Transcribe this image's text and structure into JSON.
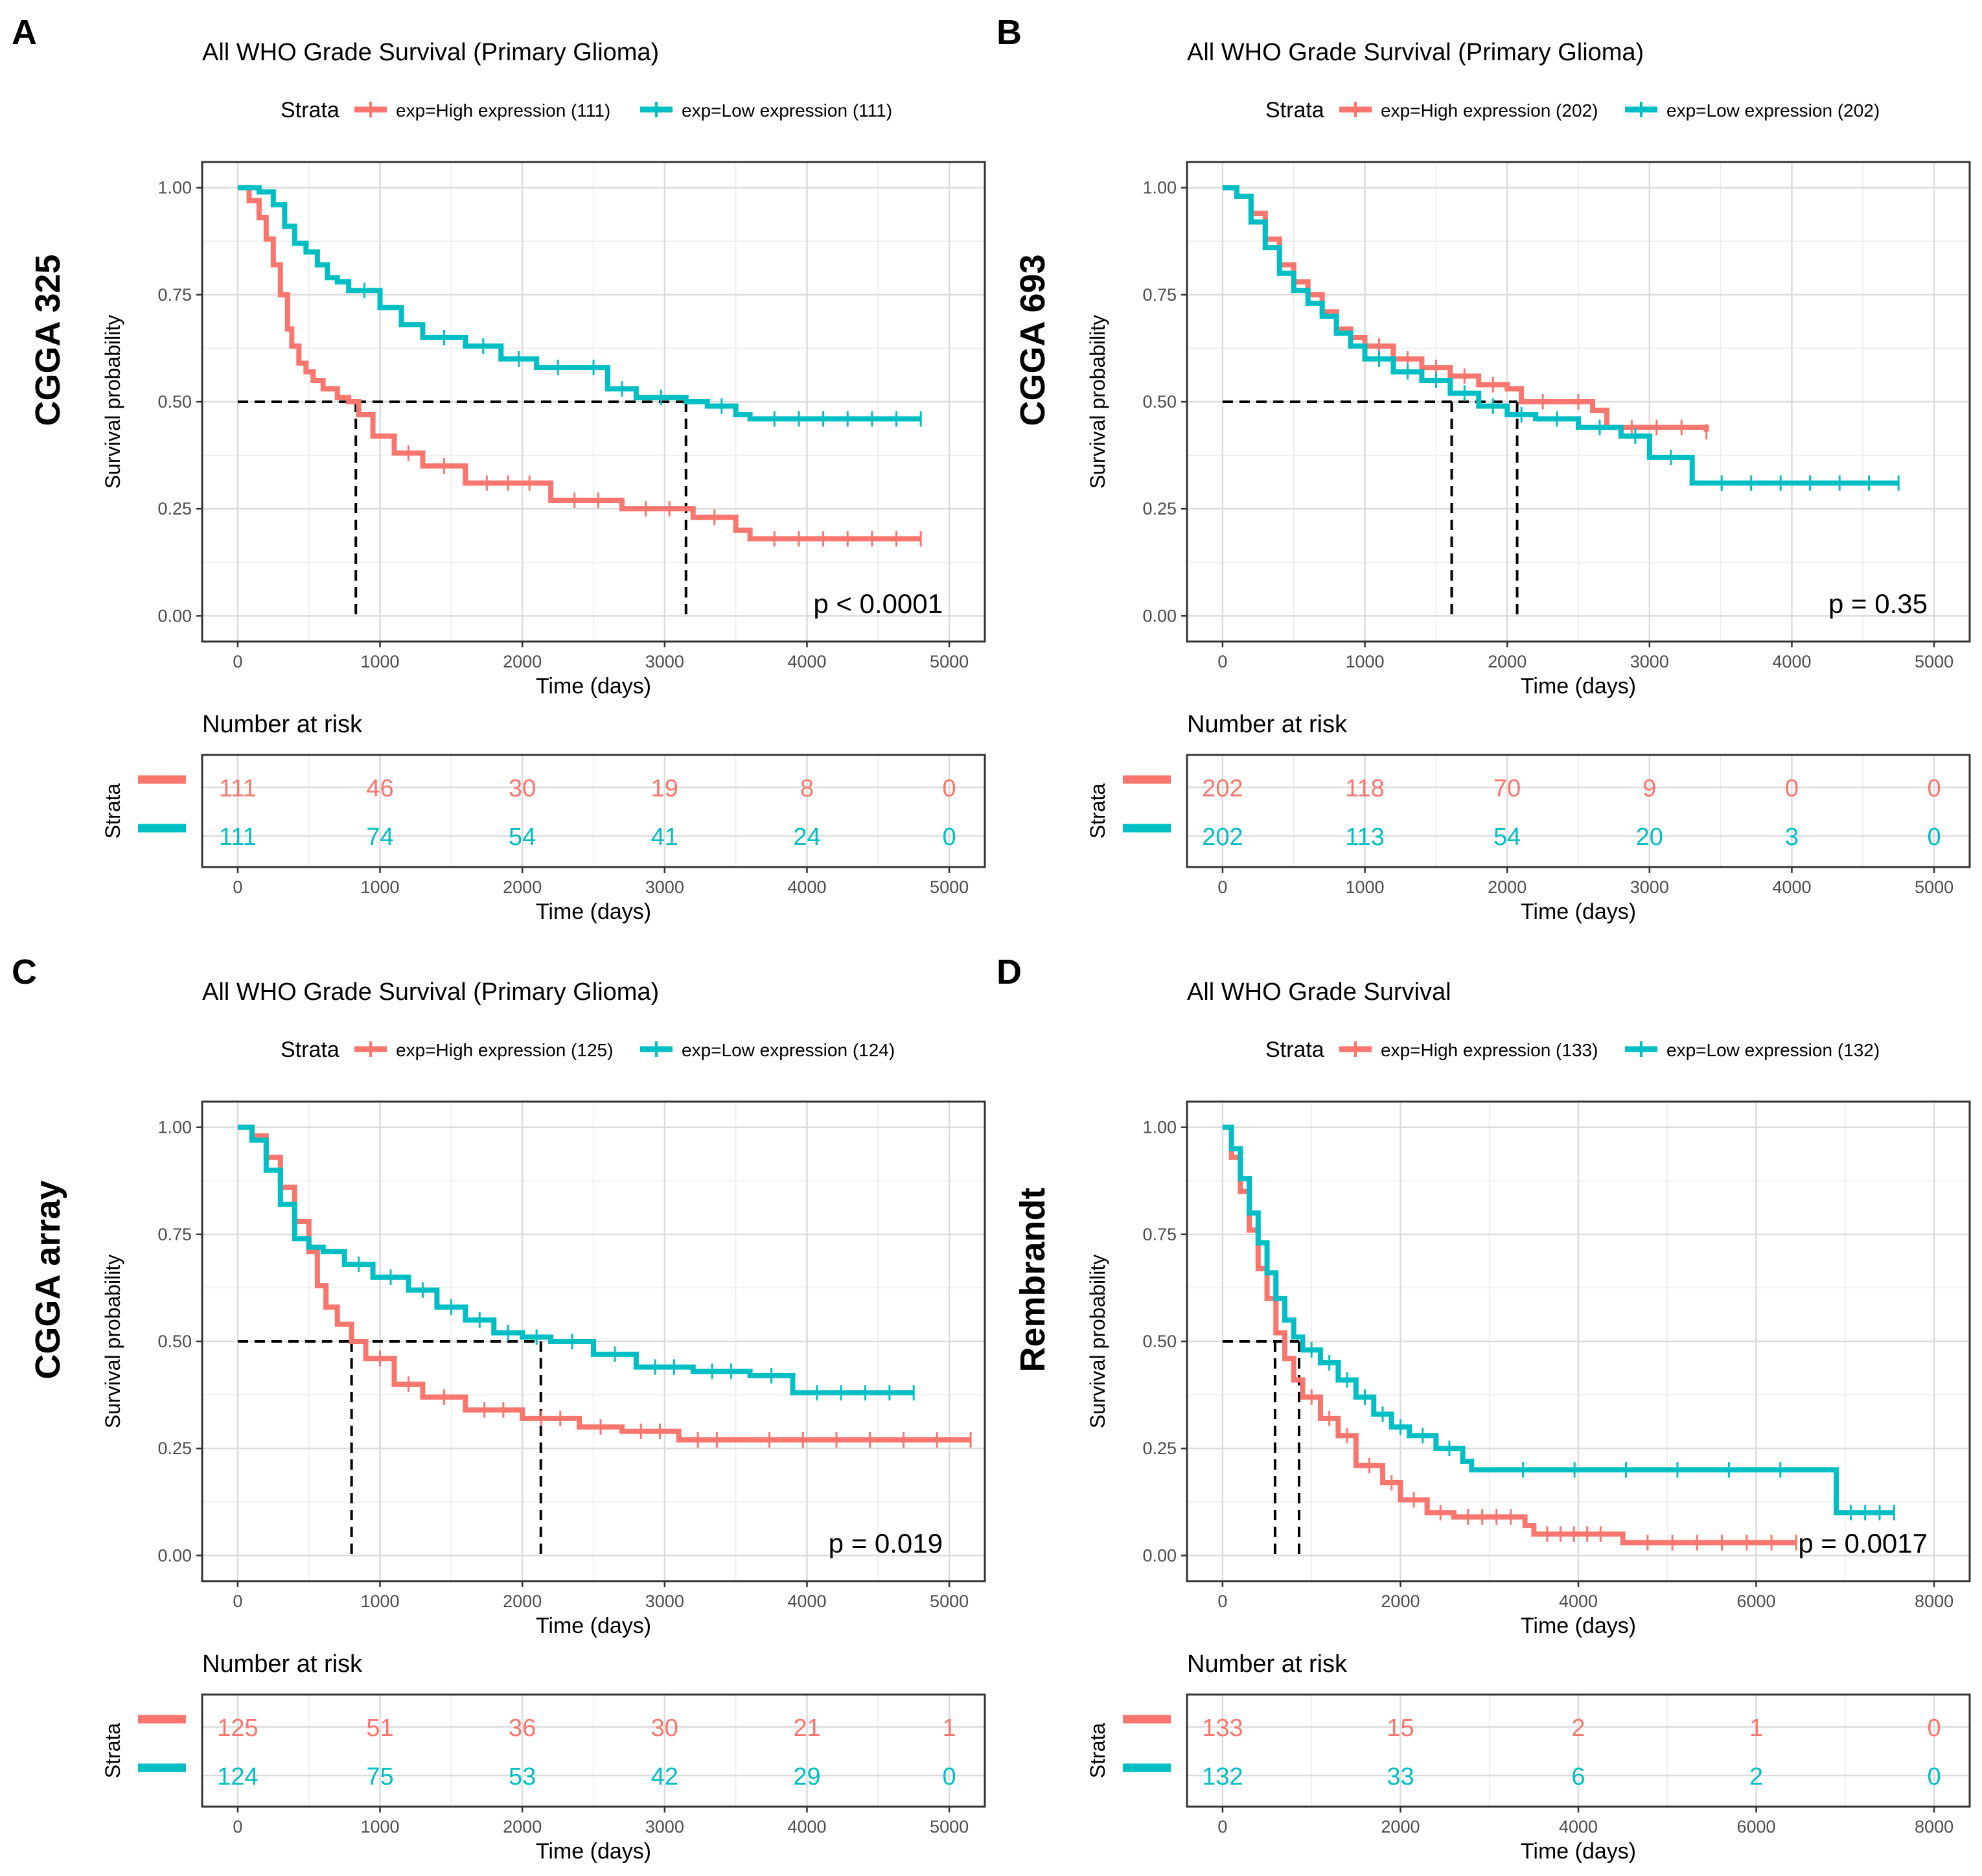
{
  "figure": {
    "kind": "Kaplan-Meier survival curves, four panels"
  },
  "chart_data": [
    {
      "type": "line",
      "panel_letter": "A",
      "dataset_label": "CGGA 325",
      "title": "All WHO Grade Survival (Primary Glioma)",
      "legend_title": "Strata",
      "xlabel": "Time (days)",
      "ylabel": "Survival probability",
      "xlim": [
        -250,
        5250
      ],
      "ylim": [
        -0.06,
        1.06
      ],
      "xticks": [
        0,
        1000,
        2000,
        3000,
        4000,
        5000
      ],
      "yticks": [
        0,
        0.25,
        0.5,
        0.75,
        1.0
      ],
      "ytick_labels": [
        "0.00",
        "0.25",
        "0.50",
        "0.75",
        "1.00"
      ],
      "pvalue": "p < 0.0001",
      "median_survival": [
        830,
        3150
      ],
      "series": [
        {
          "name": "exp=High expression (111)",
          "color": "#F8766D",
          "x": [
            0,
            80,
            150,
            200,
            250,
            300,
            350,
            380,
            430,
            480,
            530,
            600,
            700,
            780,
            850,
            950,
            1100,
            1300,
            1600,
            2200,
            2700,
            3200,
            3500,
            3600,
            4800
          ],
          "y": [
            1.0,
            0.97,
            0.93,
            0.88,
            0.82,
            0.75,
            0.67,
            0.63,
            0.59,
            0.57,
            0.55,
            0.53,
            0.51,
            0.5,
            0.47,
            0.42,
            0.38,
            0.35,
            0.31,
            0.27,
            0.25,
            0.23,
            0.2,
            0.18,
            0.18
          ]
        },
        {
          "name": "exp=Low expression (111)",
          "color": "#00BFC4",
          "x": [
            0,
            150,
            250,
            330,
            400,
            480,
            560,
            630,
            700,
            780,
            1000,
            1150,
            1300,
            1600,
            1850,
            2100,
            2400,
            2600,
            2800,
            3150,
            3300,
            3500,
            3600,
            4800
          ],
          "y": [
            1.0,
            0.99,
            0.96,
            0.91,
            0.87,
            0.85,
            0.82,
            0.79,
            0.78,
            0.76,
            0.72,
            0.68,
            0.65,
            0.63,
            0.6,
            0.58,
            0.58,
            0.53,
            0.51,
            0.5,
            0.49,
            0.47,
            0.46,
            0.46
          ]
        }
      ],
      "risk_table": {
        "title": "Number at risk",
        "y_title": "Strata",
        "xticks": [
          0,
          1000,
          2000,
          3000,
          4000,
          5000
        ],
        "rows": [
          {
            "values": [
              "111",
              "46",
              "30",
              "19",
              "8",
              "0"
            ],
            "color": "#F8766D"
          },
          {
            "values": [
              "111",
              "74",
              "54",
              "41",
              "24",
              "0"
            ],
            "color": "#00BFC4"
          }
        ]
      }
    },
    {
      "type": "line",
      "panel_letter": "B",
      "dataset_label": "CGGA 693",
      "title": "All WHO Grade Survival (Primary Glioma)",
      "legend_title": "Strata",
      "xlabel": "Time (days)",
      "ylabel": "Survival probability",
      "xlim": [
        -250,
        5250
      ],
      "ylim": [
        -0.06,
        1.06
      ],
      "xticks": [
        0,
        1000,
        2000,
        3000,
        4000,
        5000
      ],
      "yticks": [
        0,
        0.25,
        0.5,
        0.75,
        1.0
      ],
      "ytick_labels": [
        "0.00",
        "0.25",
        "0.50",
        "0.75",
        "1.00"
      ],
      "pvalue": "p = 0.35",
      "median_survival": [
        1610,
        2070
      ],
      "series": [
        {
          "name": "exp=High expression (202)",
          "color": "#F8766D",
          "x": [
            0,
            100,
            200,
            300,
            400,
            500,
            600,
            700,
            800,
            900,
            1000,
            1200,
            1400,
            1600,
            1800,
            2000,
            2100,
            2400,
            2600,
            2700,
            3400
          ],
          "y": [
            1.0,
            0.98,
            0.94,
            0.88,
            0.82,
            0.78,
            0.75,
            0.71,
            0.67,
            0.65,
            0.63,
            0.6,
            0.58,
            0.56,
            0.54,
            0.53,
            0.5,
            0.5,
            0.48,
            0.44,
            0.43
          ]
        },
        {
          "name": "exp=Low expression (202)",
          "color": "#00BFC4",
          "x": [
            0,
            100,
            200,
            300,
            400,
            500,
            600,
            700,
            800,
            900,
            1000,
            1200,
            1400,
            1600,
            1800,
            2000,
            2200,
            2500,
            2800,
            3000,
            3300,
            4750
          ],
          "y": [
            1.0,
            0.98,
            0.92,
            0.86,
            0.8,
            0.76,
            0.73,
            0.7,
            0.66,
            0.63,
            0.6,
            0.57,
            0.55,
            0.52,
            0.49,
            0.47,
            0.46,
            0.44,
            0.42,
            0.37,
            0.31,
            0.31
          ]
        }
      ],
      "risk_table": {
        "title": "Number at risk",
        "y_title": "Strata",
        "xticks": [
          0,
          1000,
          2000,
          3000,
          4000,
          5000
        ],
        "rows": [
          {
            "values": [
              "202",
              "118",
              "70",
              "9",
              "0",
              "0"
            ],
            "color": "#F8766D"
          },
          {
            "values": [
              "202",
              "113",
              "54",
              "20",
              "3",
              "0"
            ],
            "color": "#00BFC4"
          }
        ]
      }
    },
    {
      "type": "line",
      "panel_letter": "C",
      "dataset_label": "CGGA array",
      "title": "All WHO Grade Survival (Primary Glioma)",
      "legend_title": "Strata",
      "xlabel": "Time (days)",
      "ylabel": "Survival probability",
      "xlim": [
        -250,
        5250
      ],
      "ylim": [
        -0.06,
        1.06
      ],
      "xticks": [
        0,
        1000,
        2000,
        3000,
        4000,
        5000
      ],
      "yticks": [
        0,
        0.25,
        0.5,
        0.75,
        1.0
      ],
      "ytick_labels": [
        "0.00",
        "0.25",
        "0.50",
        "0.75",
        "1.00"
      ],
      "pvalue": "p = 0.019",
      "median_survival": [
        800,
        2130
      ],
      "series": [
        {
          "name": "exp=High expression (125)",
          "color": "#F8766D",
          "x": [
            0,
            100,
            200,
            300,
            400,
            500,
            560,
            620,
            700,
            800,
            900,
            1100,
            1300,
            1600,
            2000,
            2400,
            2700,
            3100,
            3500,
            5150
          ],
          "y": [
            1.0,
            0.98,
            0.93,
            0.86,
            0.78,
            0.71,
            0.63,
            0.58,
            0.54,
            0.5,
            0.46,
            0.4,
            0.37,
            0.34,
            0.32,
            0.3,
            0.29,
            0.27,
            0.27,
            0.27
          ]
        },
        {
          "name": "exp=Low expression (124)",
          "color": "#00BFC4",
          "x": [
            0,
            100,
            200,
            300,
            400,
            500,
            600,
            750,
            950,
            1200,
            1400,
            1600,
            1800,
            2000,
            2200,
            2500,
            2800,
            3200,
            3600,
            3900,
            4750
          ],
          "y": [
            1.0,
            0.97,
            0.9,
            0.82,
            0.74,
            0.72,
            0.71,
            0.68,
            0.65,
            0.62,
            0.58,
            0.55,
            0.52,
            0.51,
            0.5,
            0.47,
            0.44,
            0.43,
            0.42,
            0.38,
            0.38
          ]
        }
      ],
      "risk_table": {
        "title": "Number at risk",
        "y_title": "Strata",
        "xticks": [
          0,
          1000,
          2000,
          3000,
          4000,
          5000
        ],
        "rows": [
          {
            "values": [
              "125",
              "51",
              "36",
              "30",
              "21",
              "1"
            ],
            "color": "#F8766D"
          },
          {
            "values": [
              "124",
              "75",
              "53",
              "42",
              "29",
              "0"
            ],
            "color": "#00BFC4"
          }
        ]
      }
    },
    {
      "type": "line",
      "panel_letter": "D",
      "dataset_label": "Rembrandt",
      "title": "All WHO Grade Survival",
      "legend_title": "Strata",
      "xlabel": "Time (days)",
      "ylabel": "Survival probability",
      "xlim": [
        -400,
        8400
      ],
      "ylim": [
        -0.06,
        1.06
      ],
      "xticks": [
        0,
        2000,
        4000,
        6000,
        8000
      ],
      "yticks": [
        0,
        0.25,
        0.5,
        0.75,
        1.0
      ],
      "ytick_labels": [
        "0.00",
        "0.25",
        "0.50",
        "0.75",
        "1.00"
      ],
      "pvalue": "p = 0.0017",
      "median_survival": [
        590,
        860
      ],
      "series": [
        {
          "name": "exp=High expression (133)",
          "color": "#F8766D",
          "x": [
            0,
            100,
            200,
            300,
            400,
            500,
            600,
            700,
            800,
            900,
            1100,
            1300,
            1500,
            1800,
            2000,
            2300,
            2600,
            3400,
            3500,
            4400,
            4500,
            6450
          ],
          "y": [
            1.0,
            0.93,
            0.85,
            0.76,
            0.67,
            0.6,
            0.52,
            0.46,
            0.41,
            0.37,
            0.32,
            0.28,
            0.21,
            0.17,
            0.13,
            0.1,
            0.09,
            0.07,
            0.05,
            0.05,
            0.03,
            0.03
          ]
        },
        {
          "name": "exp=Low expression (132)",
          "color": "#00BFC4",
          "x": [
            0,
            100,
            200,
            300,
            400,
            500,
            600,
            700,
            800,
            900,
            1100,
            1300,
            1500,
            1700,
            1900,
            2100,
            2400,
            2700,
            2800,
            6850,
            6900,
            7550
          ],
          "y": [
            1.0,
            0.95,
            0.88,
            0.8,
            0.73,
            0.66,
            0.6,
            0.55,
            0.51,
            0.48,
            0.45,
            0.41,
            0.37,
            0.33,
            0.3,
            0.28,
            0.25,
            0.22,
            0.2,
            0.2,
            0.1,
            0.1
          ]
        }
      ],
      "risk_table": {
        "title": "Number at risk",
        "y_title": "Strata",
        "xticks": [
          0,
          2000,
          4000,
          6000,
          8000
        ],
        "rows": [
          {
            "values": [
              "133",
              "15",
              "2",
              "1",
              "0"
            ],
            "color": "#F8766D"
          },
          {
            "values": [
              "132",
              "33",
              "6",
              "2",
              "0"
            ],
            "color": "#00BFC4"
          }
        ]
      }
    }
  ]
}
